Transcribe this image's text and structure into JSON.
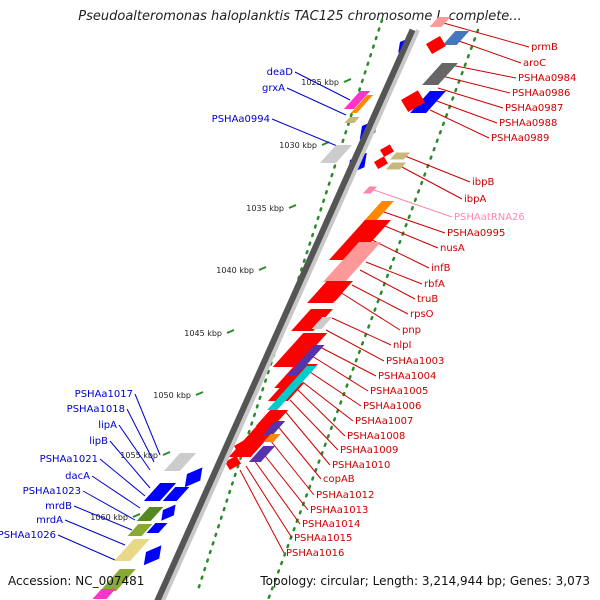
{
  "title": "Pseudoalteromonas haloplanktis TAC125 chromosome I, complete...",
  "accession": "Accession: NC_007481",
  "topology": "Topology: circular; Length: 3,214,944 bp; Genes: 3,073",
  "colors": {
    "red_gene": "#ff0000",
    "blue_gene": "#0000ff",
    "rna_gene": "#ff88aa",
    "dna_track": "#888888",
    "ruler_dots": "#2a8a2a"
  },
  "kbp_ticks": [
    {
      "label": "1025 kbp"
    },
    {
      "label": "1030 kbp"
    },
    {
      "label": "1035 kbp"
    },
    {
      "label": "1040 kbp"
    },
    {
      "label": "1045 kbp"
    },
    {
      "label": "1050 kbp"
    },
    {
      "label": "1055 kbp"
    },
    {
      "label": "1060 kbp"
    }
  ],
  "left_labels": [
    {
      "name": "deaD"
    },
    {
      "name": "grxA"
    },
    {
      "name": "PSHAa0994"
    },
    {
      "name": "PSHAa1017"
    },
    {
      "name": "PSHAa1018"
    },
    {
      "name": "lipA"
    },
    {
      "name": "lipB"
    },
    {
      "name": "PSHAa1021"
    },
    {
      "name": "dacA"
    },
    {
      "name": "PSHAa1023"
    },
    {
      "name": "mrdB"
    },
    {
      "name": "mrdA"
    },
    {
      "name": "PSHAa1026"
    }
  ],
  "right_labels": [
    {
      "name": "prmB"
    },
    {
      "name": "aroC"
    },
    {
      "name": "PSHAa0984"
    },
    {
      "name": "PSHAa0986"
    },
    {
      "name": "PSHAa0987"
    },
    {
      "name": "PSHAa0988"
    },
    {
      "name": "PSHAa0989"
    },
    {
      "name": "ibpB"
    },
    {
      "name": "ibpA"
    },
    {
      "name": "PSHAatRNA26"
    },
    {
      "name": "PSHAa0995"
    },
    {
      "name": "nusA"
    },
    {
      "name": "infB"
    },
    {
      "name": "rbfA"
    },
    {
      "name": "truB"
    },
    {
      "name": "rpsO"
    },
    {
      "name": "pnp"
    },
    {
      "name": "nlpI"
    },
    {
      "name": "PSHAa1003"
    },
    {
      "name": "PSHAa1004"
    },
    {
      "name": "PSHAa1005"
    },
    {
      "name": "PSHAa1006"
    },
    {
      "name": "PSHAa1007"
    },
    {
      "name": "PSHAa1008"
    },
    {
      "name": "PSHAa1009"
    },
    {
      "name": "PSHAa1010"
    },
    {
      "name": "copAB"
    },
    {
      "name": "PSHAa1012"
    },
    {
      "name": "PSHAa1013"
    },
    {
      "name": "PSHAa1014"
    },
    {
      "name": "PSHAa1015"
    },
    {
      "name": "PSHAa1016"
    }
  ]
}
